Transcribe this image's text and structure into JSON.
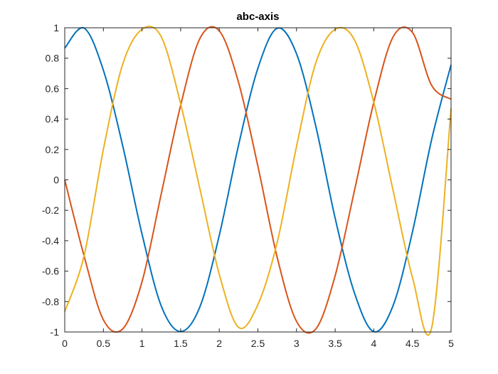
{
  "chart_data": {
    "type": "line",
    "title": "abc-axis",
    "xlabel": "",
    "ylabel": "",
    "xlim": [
      0,
      5
    ],
    "ylim": [
      -1,
      1
    ],
    "x_ticks": [
      "0",
      "0.5",
      "1",
      "1.5",
      "2",
      "2.5",
      "3",
      "3.5",
      "4",
      "4.5",
      "5"
    ],
    "y_ticks": [
      "1",
      "0.8",
      "0.6",
      "0.4",
      "0.2",
      "0",
      "-0.2",
      "-0.4",
      "-0.6",
      "-0.8",
      "-1"
    ],
    "grid": false,
    "legend": "none",
    "x": [
      0,
      0.25,
      0.5,
      0.75,
      1,
      1.25,
      1.5,
      1.75,
      2,
      2.25,
      2.5,
      2.75,
      3,
      3.25,
      3.5,
      3.75,
      4,
      4.25,
      4.5,
      4.75,
      5
    ],
    "series": [
      {
        "color": "#0072BD",
        "values": [
          0.866,
          0.998,
          0.721,
          0.225,
          -0.356,
          -0.83,
          -0.997,
          -0.834,
          -0.365,
          0.229,
          0.734,
          0.997,
          0.829,
          0.352,
          -0.252,
          -0.744,
          -0.998,
          -0.826,
          -0.343,
          0.268,
          0.757
        ]
      },
      {
        "color": "#D95319",
        "values": [
          0,
          -0.5,
          -0.92,
          -0.98,
          -0.67,
          -0.09,
          0.49,
          0.93,
          0.98,
          0.64,
          0.09,
          -0.51,
          -0.93,
          -0.98,
          -0.63,
          -0.07,
          0.51,
          0.94,
          0.97,
          0.62,
          0.53
        ]
      },
      {
        "color": "#EDB120",
        "values": [
          -0.866,
          -0.5,
          0.2,
          0.76,
          0.99,
          0.94,
          0.5,
          -0.06,
          -0.62,
          -0.97,
          -0.82,
          -0.41,
          0.22,
          0.77,
          0.99,
          0.92,
          0.51,
          -0.07,
          -0.64,
          -0.97,
          0.47
        ]
      }
    ]
  }
}
